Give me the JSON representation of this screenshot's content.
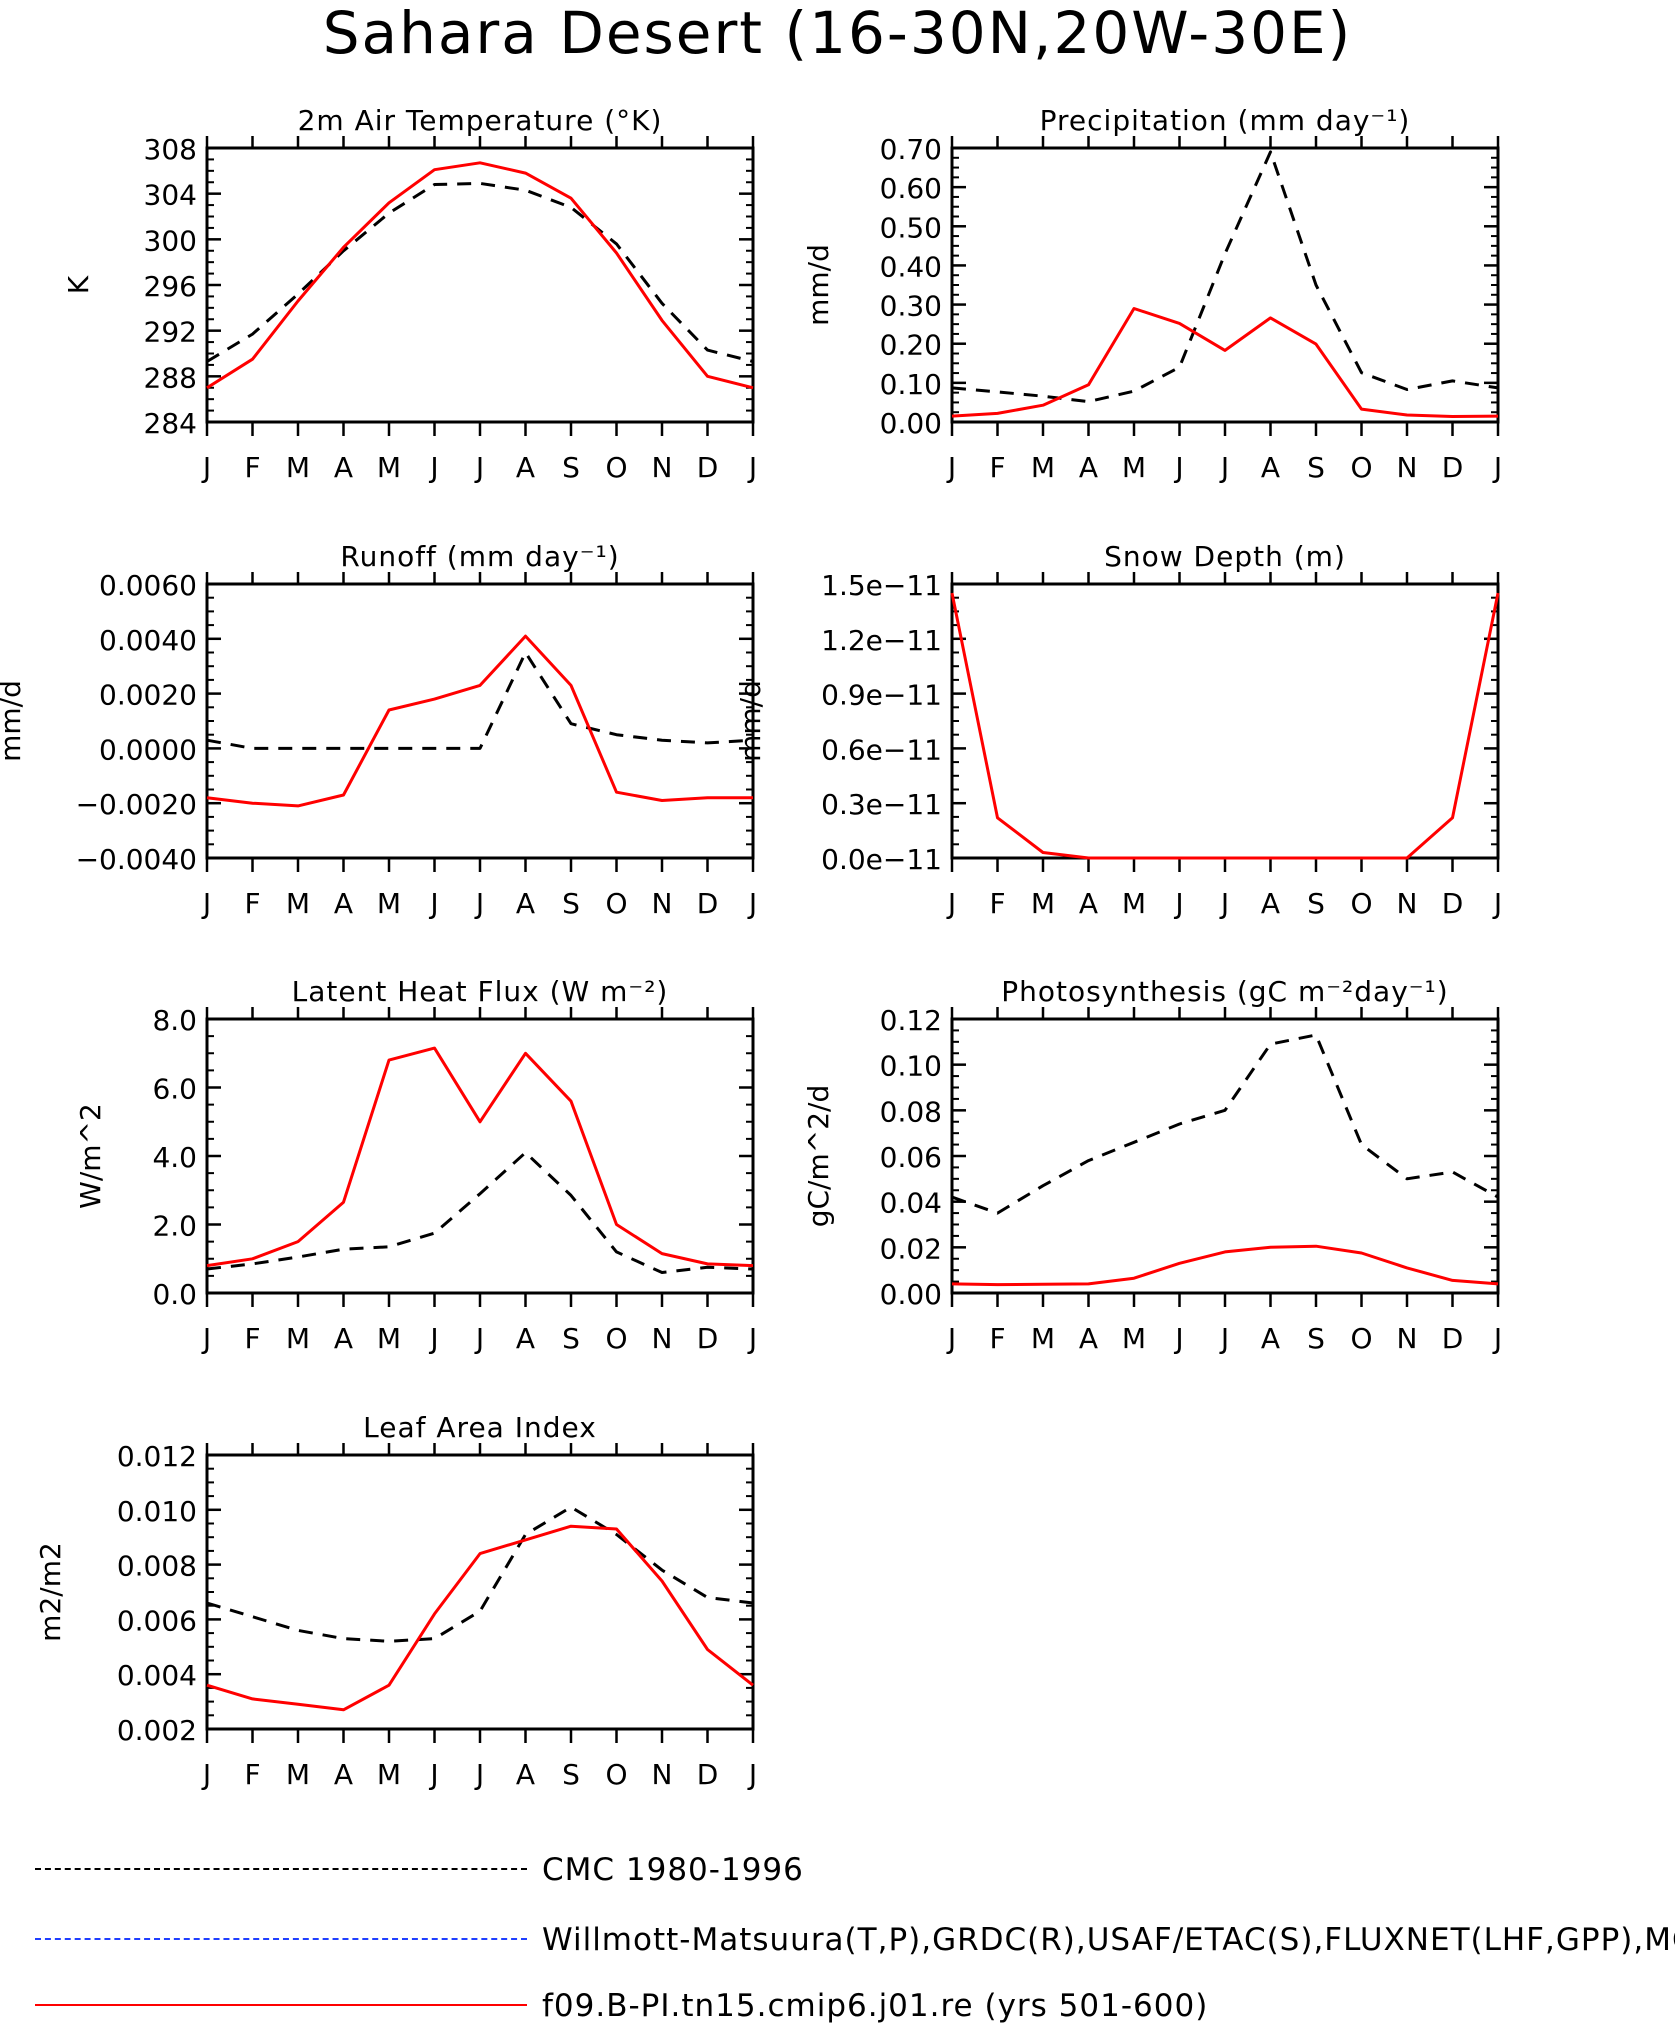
{
  "page": {
    "title": "Sahara Desert (16-30N,20W-30E)"
  },
  "months": [
    "J",
    "F",
    "M",
    "A",
    "M",
    "J",
    "J",
    "A",
    "S",
    "O",
    "N",
    "D",
    "J"
  ],
  "legend": [
    {
      "label": "CMC 1980-1996",
      "color": "#000000",
      "style": "dashed"
    },
    {
      "label": "Willmott-Matsuura(T,P),GRDC(R),USAF/ETAC(S),FLUXNET(LHF,GPP),MODIS",
      "color": "#1f3fff",
      "style": "dashed"
    },
    {
      "label": "f09.B-PI.tn15.cmip6.j01.re (yrs 501-600)",
      "color": "#ff0000",
      "style": "solid"
    }
  ],
  "chart_data": [
    {
      "type": "line",
      "title": "2m Air Temperature (°K)",
      "ylabel": "K",
      "ylim": [
        284,
        308
      ],
      "yticks": [
        "284",
        "288",
        "292",
        "296",
        "300",
        "304",
        "308"
      ],
      "x": [
        "J",
        "F",
        "M",
        "A",
        "M",
        "J",
        "J",
        "A",
        "S",
        "O",
        "N",
        "D",
        "J"
      ],
      "series": [
        {
          "name": "CMC 1980-1996",
          "values": [
            289.3,
            291.7,
            295.2,
            299.0,
            302.3,
            304.8,
            304.9,
            304.3,
            302.8,
            299.6,
            294.4,
            290.3,
            289.3
          ]
        },
        {
          "name": "f09.B-PI.tn15.cmip6.j01.re (yrs 501-600)",
          "values": [
            287.0,
            289.5,
            294.6,
            299.3,
            303.2,
            306.1,
            306.7,
            305.8,
            303.6,
            298.8,
            292.9,
            288.0,
            287.0
          ]
        }
      ]
    },
    {
      "type": "line",
      "title": "Precipitation (mm day⁻¹)",
      "ylabel": "mm/d",
      "ylim": [
        0,
        0.7
      ],
      "yticks": [
        "0.00",
        "0.10",
        "0.20",
        "0.30",
        "0.40",
        "0.50",
        "0.60",
        "0.70"
      ],
      "x": [
        "J",
        "F",
        "M",
        "A",
        "M",
        "J",
        "J",
        "A",
        "S",
        "O",
        "N",
        "D",
        "J"
      ],
      "series": [
        {
          "name": "CMC 1980-1996",
          "values": [
            0.087,
            0.077,
            0.066,
            0.052,
            0.079,
            0.14,
            0.43,
            0.69,
            0.35,
            0.126,
            0.083,
            0.105,
            0.087
          ]
        },
        {
          "name": "f09.B-PI.tn15.cmip6.j01.re (yrs 501-600)",
          "values": [
            0.015,
            0.022,
            0.043,
            0.095,
            0.29,
            0.252,
            0.183,
            0.266,
            0.199,
            0.033,
            0.018,
            0.014,
            0.015
          ]
        }
      ]
    },
    {
      "type": "line",
      "title": "Runoff (mm day⁻¹)",
      "ylabel": "mm/d",
      "ylim": [
        -0.004,
        0.006
      ],
      "yticks": [
        "−0.0040",
        "−0.0020",
        "0.0000",
        "0.0020",
        "0.0040",
        "0.0060"
      ],
      "x": [
        "J",
        "F",
        "M",
        "A",
        "M",
        "J",
        "J",
        "A",
        "S",
        "O",
        "N",
        "D",
        "J"
      ],
      "series": [
        {
          "name": "CMC 1980-1996",
          "values": [
            0.0003,
            0.0,
            0.0,
            0.0,
            0.0,
            0.0,
            0.0,
            0.0035,
            0.0009,
            0.0005,
            0.0003,
            0.0002,
            0.0003
          ]
        },
        {
          "name": "f09.B-PI.tn15.cmip6.j01.re (yrs 501-600)",
          "values": [
            -0.0018,
            -0.002,
            -0.0021,
            -0.0017,
            0.0014,
            0.0018,
            0.0023,
            0.0041,
            0.0023,
            -0.0016,
            -0.0019,
            -0.0018,
            -0.0018
          ]
        }
      ]
    },
    {
      "type": "line",
      "title": "Snow Depth (m)",
      "ylabel": "mm/d",
      "ylim": [
        0,
        1.5e-11
      ],
      "yticks": [
        "0.0e−11",
        "0.3e−11",
        "0.6e−11",
        "0.9e−11",
        "1.2e−11",
        "1.5e−11"
      ],
      "x": [
        "J",
        "F",
        "M",
        "A",
        "M",
        "J",
        "J",
        "A",
        "S",
        "O",
        "N",
        "D",
        "J"
      ],
      "series": [
        {
          "name": "CMC 1980-1996",
          "values": [
            0,
            0,
            0,
            0,
            0,
            0,
            0,
            0,
            0,
            0,
            0,
            0,
            0
          ]
        },
        {
          "name": "f09.B-PI.tn15.cmip6.j01.re (yrs 501-600)",
          "values": [
            1.45e-11,
            2.2e-12,
            3e-13,
            0,
            0,
            0,
            0,
            0,
            0,
            0,
            0,
            2.2e-12,
            1.45e-11
          ]
        }
      ]
    },
    {
      "type": "line",
      "title": "Latent Heat Flux (W m⁻²)",
      "ylabel": "W/m^2",
      "ylim": [
        0,
        8
      ],
      "yticks": [
        "0.0",
        "2.0",
        "4.0",
        "6.0",
        "8.0"
      ],
      "x": [
        "J",
        "F",
        "M",
        "A",
        "M",
        "J",
        "J",
        "A",
        "S",
        "O",
        "N",
        "D",
        "J"
      ],
      "series": [
        {
          "name": "CMC 1980-1996",
          "values": [
            0.7,
            0.85,
            1.05,
            1.28,
            1.35,
            1.75,
            2.9,
            4.1,
            2.85,
            1.2,
            0.6,
            0.75,
            0.7
          ]
        },
        {
          "name": "f09.B-PI.tn15.cmip6.j01.re (yrs 501-600)",
          "values": [
            0.8,
            1.0,
            1.5,
            2.65,
            6.8,
            7.15,
            5.0,
            7.0,
            5.6,
            2.0,
            1.15,
            0.85,
            0.8
          ]
        }
      ]
    },
    {
      "type": "line",
      "title": "Photosynthesis (gC m⁻²day⁻¹)",
      "ylabel": "gC/m^2/d",
      "ylim": [
        0,
        0.12
      ],
      "yticks": [
        "0.00",
        "0.02",
        "0.04",
        "0.06",
        "0.08",
        "0.10",
        "0.12"
      ],
      "x": [
        "J",
        "F",
        "M",
        "A",
        "M",
        "J",
        "J",
        "A",
        "S",
        "O",
        "N",
        "D",
        "J"
      ],
      "series": [
        {
          "name": "CMC 1980-1996",
          "values": [
            0.042,
            0.035,
            0.047,
            0.058,
            0.066,
            0.074,
            0.08,
            0.109,
            0.113,
            0.065,
            0.05,
            0.053,
            0.042
          ]
        },
        {
          "name": "f09.B-PI.tn15.cmip6.j01.re (yrs 501-600)",
          "values": [
            0.004,
            0.0037,
            0.0038,
            0.004,
            0.0065,
            0.013,
            0.018,
            0.02,
            0.0205,
            0.0175,
            0.011,
            0.0055,
            0.004
          ]
        }
      ]
    },
    {
      "type": "line",
      "title": "Leaf Area Index",
      "ylabel": "m2/m2",
      "ylim": [
        0.002,
        0.012
      ],
      "yticks": [
        "0.002",
        "0.004",
        "0.006",
        "0.008",
        "0.010",
        "0.012"
      ],
      "x": [
        "J",
        "F",
        "M",
        "A",
        "M",
        "J",
        "J",
        "A",
        "S",
        "O",
        "N",
        "D",
        "J"
      ],
      "series": [
        {
          "name": "CMC 1980-1996",
          "values": [
            0.0066,
            0.0061,
            0.0056,
            0.0053,
            0.0052,
            0.0053,
            0.0063,
            0.0091,
            0.0101,
            0.0091,
            0.0078,
            0.0068,
            0.0066
          ]
        },
        {
          "name": "f09.B-PI.tn15.cmip6.j01.re (yrs 501-600)",
          "values": [
            0.0036,
            0.0031,
            0.0029,
            0.0027,
            0.0036,
            0.0062,
            0.0084,
            0.0089,
            0.0094,
            0.0093,
            0.0074,
            0.0049,
            0.0036
          ]
        }
      ]
    }
  ]
}
